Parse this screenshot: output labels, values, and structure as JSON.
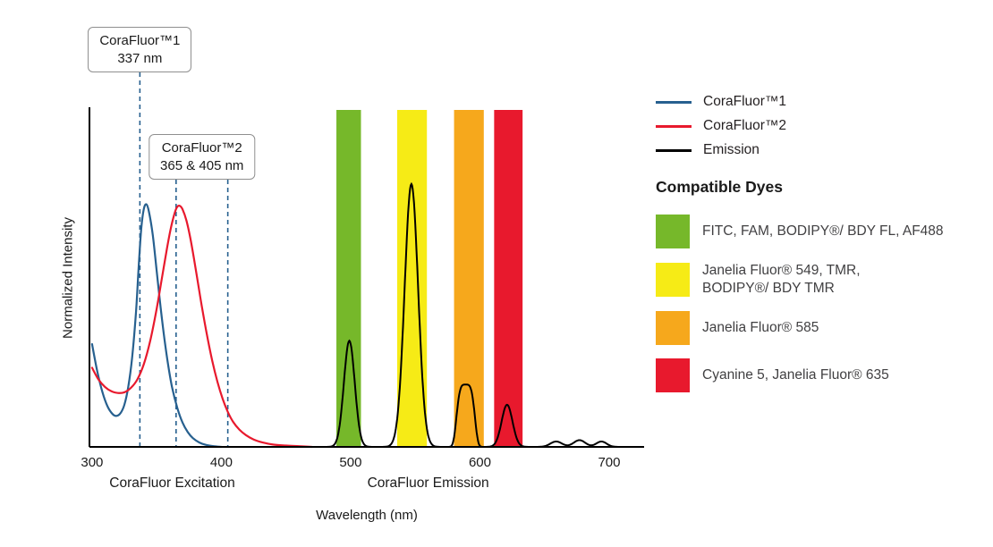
{
  "chart_data": {
    "type": "line",
    "xlabel": "Wavelength (nm)",
    "ylabel": "Normalized Intensity",
    "xlim": [
      298,
      727
    ],
    "ylim": [
      0,
      1.0
    ],
    "x_ticks": [
      300,
      400,
      500,
      600,
      700
    ],
    "grid": false,
    "legend_position": "right",
    "marker_color": "#27608f",
    "axis_section_labels": [
      {
        "label": "CoraFluor Excitation",
        "center_nm": 362
      },
      {
        "label": "CoraFluor Emission",
        "center_nm": 560
      }
    ],
    "filter_bands": [
      {
        "id": "green",
        "color": "#76b82a",
        "from_nm": 489,
        "to_nm": 508
      },
      {
        "id": "yellow",
        "color": "#f6eb16",
        "from_nm": 536,
        "to_nm": 559
      },
      {
        "id": "orange",
        "color": "#f6a81c",
        "from_nm": 580,
        "to_nm": 603
      },
      {
        "id": "red",
        "color": "#e8192d",
        "from_nm": 611,
        "to_nm": 633
      }
    ],
    "excitation_markers": [
      {
        "nm": 337,
        "series": "CoraFluor™1"
      },
      {
        "nm": 365,
        "series": "CoraFluor™2"
      },
      {
        "nm": 405,
        "series": "CoraFluor™2"
      }
    ],
    "series": [
      {
        "name": "CoraFluor™1",
        "role": "excitation",
        "color": "#27608f",
        "points": [
          [
            300,
            0.305
          ],
          [
            304,
            0.225
          ],
          [
            308,
            0.163
          ],
          [
            312,
            0.12
          ],
          [
            316,
            0.097
          ],
          [
            319,
            0.092
          ],
          [
            322,
            0.1
          ],
          [
            325,
            0.125
          ],
          [
            328,
            0.178
          ],
          [
            331,
            0.265
          ],
          [
            334,
            0.4
          ],
          [
            336,
            0.53
          ],
          [
            338,
            0.645
          ],
          [
            340,
            0.705
          ],
          [
            342,
            0.72
          ],
          [
            344,
            0.698
          ],
          [
            347,
            0.628
          ],
          [
            350,
            0.522
          ],
          [
            353,
            0.415
          ],
          [
            356,
            0.32
          ],
          [
            359,
            0.24
          ],
          [
            362,
            0.175
          ],
          [
            366,
            0.115
          ],
          [
            370,
            0.072
          ],
          [
            374,
            0.044
          ],
          [
            378,
            0.026
          ],
          [
            383,
            0.013
          ],
          [
            388,
            0.006
          ],
          [
            394,
            0.002
          ],
          [
            400,
            0
          ]
        ]
      },
      {
        "name": "CoraFluor™2",
        "role": "excitation",
        "color": "#e8192d",
        "points": [
          [
            300,
            0.235
          ],
          [
            305,
            0.2
          ],
          [
            310,
            0.178
          ],
          [
            315,
            0.165
          ],
          [
            320,
            0.16
          ],
          [
            325,
            0.162
          ],
          [
            330,
            0.175
          ],
          [
            335,
            0.2
          ],
          [
            340,
            0.245
          ],
          [
            345,
            0.315
          ],
          [
            350,
            0.41
          ],
          [
            354,
            0.5
          ],
          [
            358,
            0.59
          ],
          [
            361,
            0.65
          ],
          [
            364,
            0.695
          ],
          [
            366,
            0.713
          ],
          [
            368,
            0.715
          ],
          [
            370,
            0.705
          ],
          [
            373,
            0.672
          ],
          [
            376,
            0.62
          ],
          [
            379,
            0.555
          ],
          [
            382,
            0.485
          ],
          [
            385,
            0.415
          ],
          [
            389,
            0.33
          ],
          [
            393,
            0.255
          ],
          [
            397,
            0.193
          ],
          [
            401,
            0.143
          ],
          [
            405,
            0.104
          ],
          [
            409,
            0.075
          ],
          [
            414,
            0.051
          ],
          [
            419,
            0.035
          ],
          [
            425,
            0.022
          ],
          [
            432,
            0.013
          ],
          [
            440,
            0.007
          ],
          [
            450,
            0.004
          ],
          [
            460,
            0.002
          ],
          [
            470,
            0
          ]
        ]
      },
      {
        "name": "Emission",
        "role": "emission",
        "color": "#000000",
        "range_nm": [
          470,
          708
        ],
        "peaks": [
          {
            "center_nm": 499,
            "height": 0.315,
            "sigma_nm": 4.2,
            "exponent": 2
          },
          {
            "center_nm": 547,
            "height": 0.78,
            "sigma_nm": 5.2,
            "exponent": 2
          },
          {
            "center_nm": 589,
            "height": 0.185,
            "sigma_nm": 6.5,
            "exponent": 4
          },
          {
            "center_nm": 621,
            "height": 0.125,
            "sigma_nm": 4.2,
            "exponent": 2
          },
          {
            "center_nm": 659,
            "height": 0.016,
            "sigma_nm": 4.5,
            "exponent": 2
          },
          {
            "center_nm": 677,
            "height": 0.02,
            "sigma_nm": 4.5,
            "exponent": 2
          },
          {
            "center_nm": 694,
            "height": 0.016,
            "sigma_nm": 4,
            "exponent": 2
          }
        ]
      }
    ]
  },
  "callouts": [
    {
      "line1": "CoraFluor™1",
      "line2": "337 nm",
      "center_nm": 337
    },
    {
      "line1": "CoraFluor™2",
      "line2": "365 & 405 nm",
      "center_nm": 385
    }
  ],
  "legend": {
    "series": [
      {
        "label": "CoraFluor™1",
        "color": "#27608f"
      },
      {
        "label": "CoraFluor™2",
        "color": "#e8192d"
      },
      {
        "label": "Emission",
        "color": "#000000"
      }
    ],
    "dyes_heading": "Compatible Dyes",
    "dyes": [
      {
        "color": "#76b82a",
        "label": "FITC, FAM, BODIPY®/ BDY FL, AF488"
      },
      {
        "color": "#f6eb16",
        "label": "Janelia Fluor® 549, TMR,\nBODIPY®/ BDY TMR"
      },
      {
        "color": "#f6a81c",
        "label": "Janelia Fluor® 585"
      },
      {
        "color": "#e8192d",
        "label": "Cyanine 5, Janelia Fluor® 635"
      }
    ]
  }
}
